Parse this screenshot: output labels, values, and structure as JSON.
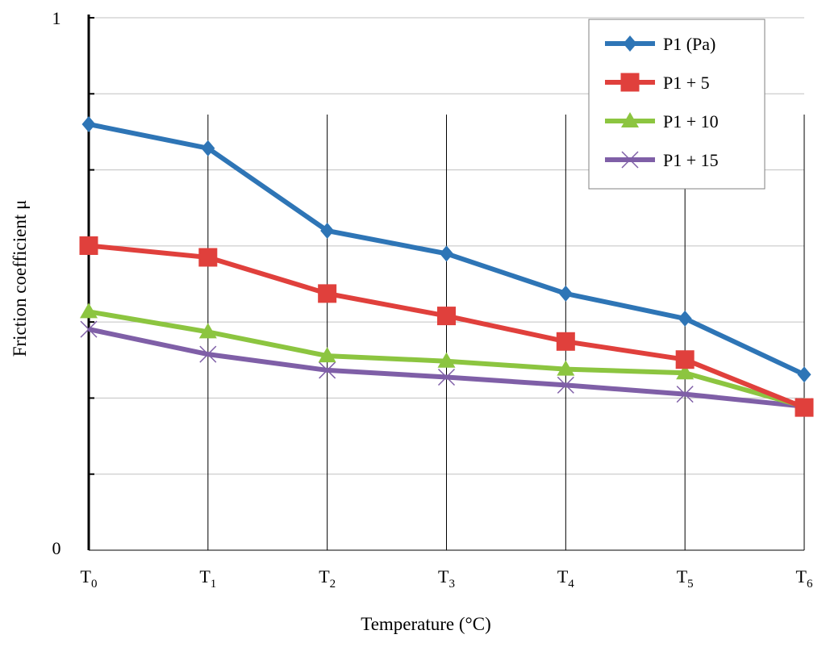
{
  "chart_data": {
    "type": "line",
    "title": "",
    "xlabel": "Temperature (°C)",
    "ylabel": "Friction coefficient μ",
    "ylim": [
      0,
      1
    ],
    "y_tick_labels": [
      "0",
      "1"
    ],
    "categories": [
      {
        "base": "T",
        "sub": "0"
      },
      {
        "base": "T",
        "sub": "1"
      },
      {
        "base": "T",
        "sub": "2"
      },
      {
        "base": "T",
        "sub": "3"
      },
      {
        "base": "T",
        "sub": "4"
      },
      {
        "base": "T",
        "sub": "5"
      },
      {
        "base": "T",
        "sub": "6"
      }
    ],
    "grid": true,
    "legend_position": "top-right",
    "series": [
      {
        "name": "P1 (Pa)",
        "color": "#2e75b6",
        "marker": "diamond",
        "values": [
          0.8,
          0.755,
          0.6,
          0.557,
          0.482,
          0.435,
          0.33
        ]
      },
      {
        "name": "P1 + 5",
        "color": "#e0403c",
        "marker": "square",
        "values": [
          0.572,
          0.55,
          0.482,
          0.44,
          0.392,
          0.358,
          0.268
        ]
      },
      {
        "name": "P1 + 10",
        "color": "#8cc540",
        "marker": "triangle",
        "values": [
          0.448,
          0.41,
          0.365,
          0.355,
          0.34,
          0.333,
          0.27
        ]
      },
      {
        "name": "P1 + 15",
        "color": "#7f5fa7",
        "marker": "x",
        "values": [
          0.415,
          0.368,
          0.338,
          0.325,
          0.31,
          0.293,
          0.27
        ]
      }
    ]
  }
}
